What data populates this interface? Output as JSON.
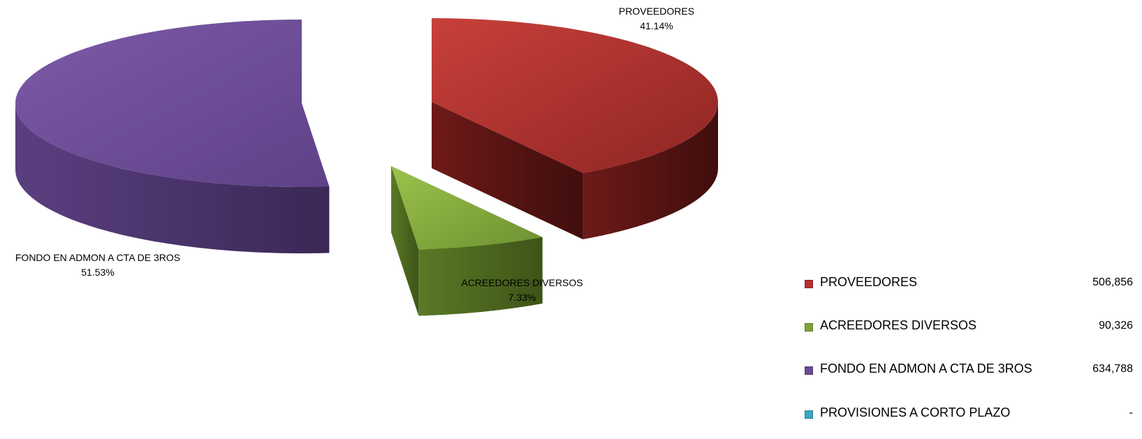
{
  "chart_data": {
    "type": "pie",
    "style": "3d-exploded",
    "title": "",
    "slices": [
      {
        "label": "PROVEEDORES",
        "value": 506856,
        "value_text": "506,856",
        "percent_text": "41.14%",
        "color": "#b5322f"
      },
      {
        "label": "ACREEDORES DIVERSOS",
        "value": 90326,
        "value_text": "90,326",
        "percent_text": "7.33%",
        "color": "#7ea33a"
      },
      {
        "label": "FONDO EN ADMON A CTA DE 3ROS",
        "value": 634788,
        "value_text": "634,788",
        "percent_text": "51.53%",
        "color": "#6b4b97"
      },
      {
        "label": "PROVISIONES A CORTO PLAZO",
        "value": 0,
        "value_text": "-",
        "percent_text": "",
        "color": "#3aa6c4"
      }
    ],
    "legend_position": "bottom-right"
  }
}
